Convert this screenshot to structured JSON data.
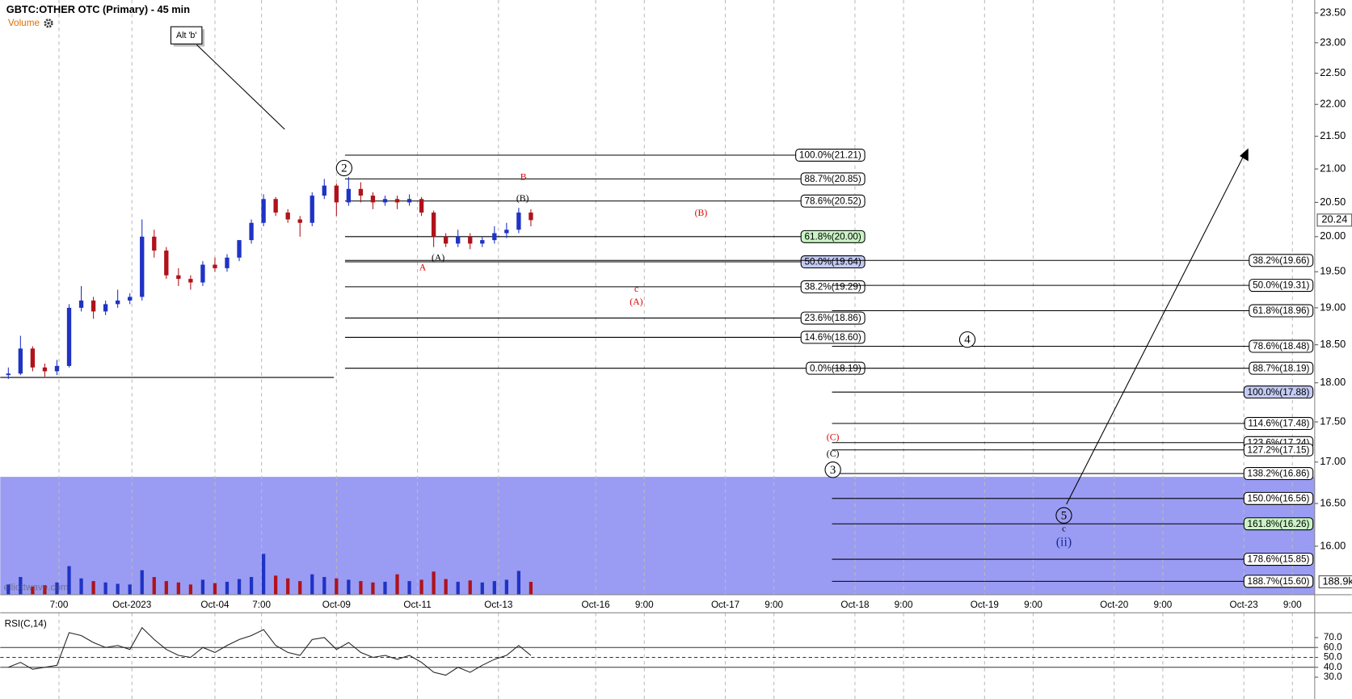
{
  "chart_data": {
    "type": "candlestick",
    "title": "GBTC:OTHER OTC (Primary) - 45 min",
    "volume_label": "Volume",
    "rsi_label": "RSI(C,14)",
    "watermark": "elliottwave.com",
    "log_scale": true,
    "grid": true,
    "up_color": "#1f33c4",
    "down_color": "#b0121b",
    "xlim": [
      0,
      324.5
    ],
    "xticks": [
      {
        "value": 14.5,
        "label": "7:00"
      },
      {
        "value": 32.5,
        "label": "Oct-2023"
      },
      {
        "value": 53,
        "label": "Oct-04"
      },
      {
        "value": 64.5,
        "label": "7:00"
      },
      {
        "value": 83,
        "label": "Oct-09"
      },
      {
        "value": 103,
        "label": "Oct-11"
      },
      {
        "value": 123,
        "label": "Oct-13"
      },
      {
        "value": 147,
        "label": "Oct-16"
      },
      {
        "value": 159,
        "label": "9:00"
      },
      {
        "value": 179,
        "label": "Oct-17"
      },
      {
        "value": 191,
        "label": "9:00"
      },
      {
        "value": 211,
        "label": "Oct-18"
      },
      {
        "value": 223,
        "label": "9:00"
      },
      {
        "value": 243,
        "label": "Oct-19"
      },
      {
        "value": 255,
        "label": "9:00"
      },
      {
        "value": 275,
        "label": "Oct-20"
      },
      {
        "value": 287,
        "label": "9:00"
      },
      {
        "value": 307,
        "label": "Oct-23"
      },
      {
        "value": 319,
        "label": "9:00"
      }
    ],
    "ylim": [
      15.45,
      23.72
    ],
    "yticks": [
      {
        "value": 16,
        "label": "16.00"
      },
      {
        "value": 16.5,
        "label": "16.50"
      },
      {
        "value": 17,
        "label": "17.00"
      },
      {
        "value": 17.5,
        "label": "17.50"
      },
      {
        "value": 18,
        "label": "18.00"
      },
      {
        "value": 18.5,
        "label": "18.50"
      },
      {
        "value": 19,
        "label": "19.00"
      },
      {
        "value": 19.5,
        "label": "19.50"
      },
      {
        "value": 20,
        "label": "20.00"
      },
      {
        "value": 20.5,
        "label": "20.50"
      },
      {
        "value": 21,
        "label": "21.00"
      },
      {
        "value": 21.5,
        "label": "21.50"
      },
      {
        "value": 22,
        "label": "22.00"
      },
      {
        "value": 22.5,
        "label": "22.50"
      },
      {
        "value": 23,
        "label": "23.00"
      },
      {
        "value": 23.5,
        "label": "23.50"
      }
    ],
    "x": [
      2,
      5,
      8,
      11,
      14,
      17,
      20,
      23,
      26,
      29,
      32,
      35,
      38,
      41,
      44,
      47,
      50,
      53,
      56,
      59,
      62,
      65,
      68,
      71,
      74,
      77,
      80,
      83,
      86,
      89,
      92,
      95,
      98,
      101,
      104,
      107,
      110,
      113,
      116,
      119,
      122,
      125,
      128,
      131
    ],
    "candles": [
      [
        18.1,
        18.2,
        18.05,
        18.12
      ],
      [
        18.12,
        18.62,
        18.1,
        18.45
      ],
      [
        18.45,
        18.48,
        18.15,
        18.2
      ],
      [
        18.2,
        18.25,
        18.08,
        18.15
      ],
      [
        18.15,
        18.3,
        18.1,
        18.22
      ],
      [
        18.22,
        19.05,
        18.2,
        19.0
      ],
      [
        19.0,
        19.3,
        18.95,
        19.1
      ],
      [
        19.1,
        19.15,
        18.85,
        18.95
      ],
      [
        18.95,
        19.1,
        18.9,
        19.05
      ],
      [
        19.05,
        19.25,
        19.0,
        19.1
      ],
      [
        19.1,
        19.2,
        19.05,
        19.15
      ],
      [
        19.15,
        20.25,
        19.1,
        20.0
      ],
      [
        20.0,
        20.1,
        19.7,
        19.8
      ],
      [
        19.8,
        19.85,
        19.4,
        19.45
      ],
      [
        19.45,
        19.55,
        19.3,
        19.4
      ],
      [
        19.4,
        19.45,
        19.25,
        19.35
      ],
      [
        19.35,
        19.65,
        19.3,
        19.6
      ],
      [
        19.6,
        19.7,
        19.5,
        19.55
      ],
      [
        19.55,
        19.75,
        19.5,
        19.7
      ],
      [
        19.7,
        19.95,
        19.65,
        19.95
      ],
      [
        19.95,
        20.25,
        19.9,
        20.2
      ],
      [
        20.2,
        20.62,
        20.15,
        20.55
      ],
      [
        20.55,
        20.58,
        20.3,
        20.35
      ],
      [
        20.35,
        20.4,
        20.2,
        20.25
      ],
      [
        20.25,
        20.3,
        20.0,
        20.2
      ],
      [
        20.2,
        20.65,
        20.15,
        20.6
      ],
      [
        20.6,
        20.85,
        20.55,
        20.75
      ],
      [
        20.75,
        20.78,
        20.3,
        20.5
      ],
      [
        20.5,
        20.88,
        20.45,
        20.7
      ],
      [
        20.7,
        20.8,
        20.5,
        20.6
      ],
      [
        20.6,
        20.65,
        20.4,
        20.5
      ],
      [
        20.5,
        20.6,
        20.45,
        20.55
      ],
      [
        20.55,
        20.6,
        20.4,
        20.5
      ],
      [
        20.5,
        20.62,
        20.45,
        20.55
      ],
      [
        20.55,
        20.58,
        20.3,
        20.35
      ],
      [
        20.35,
        20.38,
        19.85,
        20.0
      ],
      [
        20.0,
        20.05,
        19.85,
        19.9
      ],
      [
        19.9,
        20.1,
        19.85,
        20.0
      ],
      [
        20.0,
        20.05,
        19.82,
        19.9
      ],
      [
        19.9,
        20.0,
        19.85,
        19.95
      ],
      [
        19.95,
        20.15,
        19.9,
        20.05
      ],
      [
        20.05,
        20.2,
        19.98,
        20.1
      ],
      [
        20.1,
        20.42,
        20.05,
        20.35
      ],
      [
        20.35,
        20.4,
        20.15,
        20.24
      ]
    ],
    "current_price": 20.24,
    "support_line": 18.07,
    "zone_top": 16.82,
    "zone_color": "#9a9cf3",
    "volume": {
      "ylim": [
        0,
        1000
      ],
      "values": [
        150,
        260,
        120,
        140,
        180,
        420,
        240,
        200,
        180,
        160,
        150,
        360,
        260,
        200,
        180,
        150,
        220,
        170,
        190,
        230,
        260,
        600,
        280,
        240,
        200,
        300,
        260,
        240,
        220,
        200,
        180,
        190,
        300,
        200,
        220,
        340,
        230,
        190,
        210,
        180,
        200,
        220,
        350,
        188.9
      ],
      "current": {
        "value": 188.9,
        "label": "188.9k"
      }
    },
    "rsi": {
      "ylim": [
        8,
        95
      ],
      "color": "#222",
      "yticks": [
        {
          "value": 30,
          "label": "30.0"
        },
        {
          "value": 40,
          "label": "40.0"
        },
        {
          "value": 50,
          "label": "50.0"
        },
        {
          "value": 60,
          "label": "60.0"
        },
        {
          "value": 70,
          "label": "70.0"
        }
      ],
      "guide_lines": [
        40,
        50,
        60
      ],
      "dashed_line": 50,
      "values": [
        40,
        45,
        38,
        40,
        42,
        75,
        72,
        65,
        60,
        62,
        58,
        80,
        68,
        58,
        52,
        50,
        60,
        55,
        62,
        68,
        72,
        78,
        62,
        55,
        52,
        68,
        70,
        58,
        65,
        55,
        50,
        52,
        48,
        52,
        45,
        35,
        32,
        40,
        35,
        42,
        48,
        52,
        62,
        52
      ]
    },
    "fib_left": [
      {
        "value": 21.21,
        "label": "100.0%(21.21)"
      },
      {
        "value": 20.85,
        "label": "88.7%(20.85)"
      },
      {
        "value": 20.52,
        "label": "78.6%(20.52)"
      },
      {
        "value": 20.0,
        "label": "61.8%(20.00)",
        "fill": "#c9f3c4"
      },
      {
        "value": 19.64,
        "label": "50.0%(19.64)",
        "fill": "#c3cbf4"
      },
      {
        "value": 19.29,
        "label": "38.2%(19.29)"
      },
      {
        "value": 18.86,
        "label": "23.6%(18.86)"
      },
      {
        "value": 18.6,
        "label": "14.6%(18.60)"
      },
      {
        "value": 18.19,
        "label": "0.0%(18.19)"
      }
    ],
    "fib_right": [
      {
        "value": 19.66,
        "label": "38.2%(19.66)"
      },
      {
        "value": 19.31,
        "label": "50.0%(19.31)"
      },
      {
        "value": 18.96,
        "label": "61.8%(18.96)"
      },
      {
        "value": 18.48,
        "label": "78.6%(18.48)"
      },
      {
        "value": 18.19,
        "label": "88.7%(18.19)"
      },
      {
        "value": 17.88,
        "label": "100.0%(17.88)",
        "fill": "#c3cbf4"
      },
      {
        "value": 17.48,
        "label": "114.6%(17.48)"
      },
      {
        "value": 17.24,
        "label": "123.6%(17.24)"
      },
      {
        "value": 17.15,
        "label": "127.2%(17.15)"
      },
      {
        "value": 16.86,
        "label": "138.2%(16.86)"
      },
      {
        "value": 16.56,
        "label": "150.0%(16.56)"
      },
      {
        "value": 16.26,
        "label": "161.8%(16.26)",
        "fill": "#c9f3c4"
      },
      {
        "value": 15.85,
        "label": "178.6%(15.85)"
      },
      {
        "value": 15.6,
        "label": "188.7%(15.60)"
      }
    ],
    "annotations": [
      "Alt 'b'",
      "2",
      "(B)",
      "B",
      "(A)",
      "A",
      "(B)",
      "c",
      "(A)",
      "4",
      "(C)",
      "(C)",
      "3",
      "5",
      "c",
      "(ii)"
    ]
  }
}
